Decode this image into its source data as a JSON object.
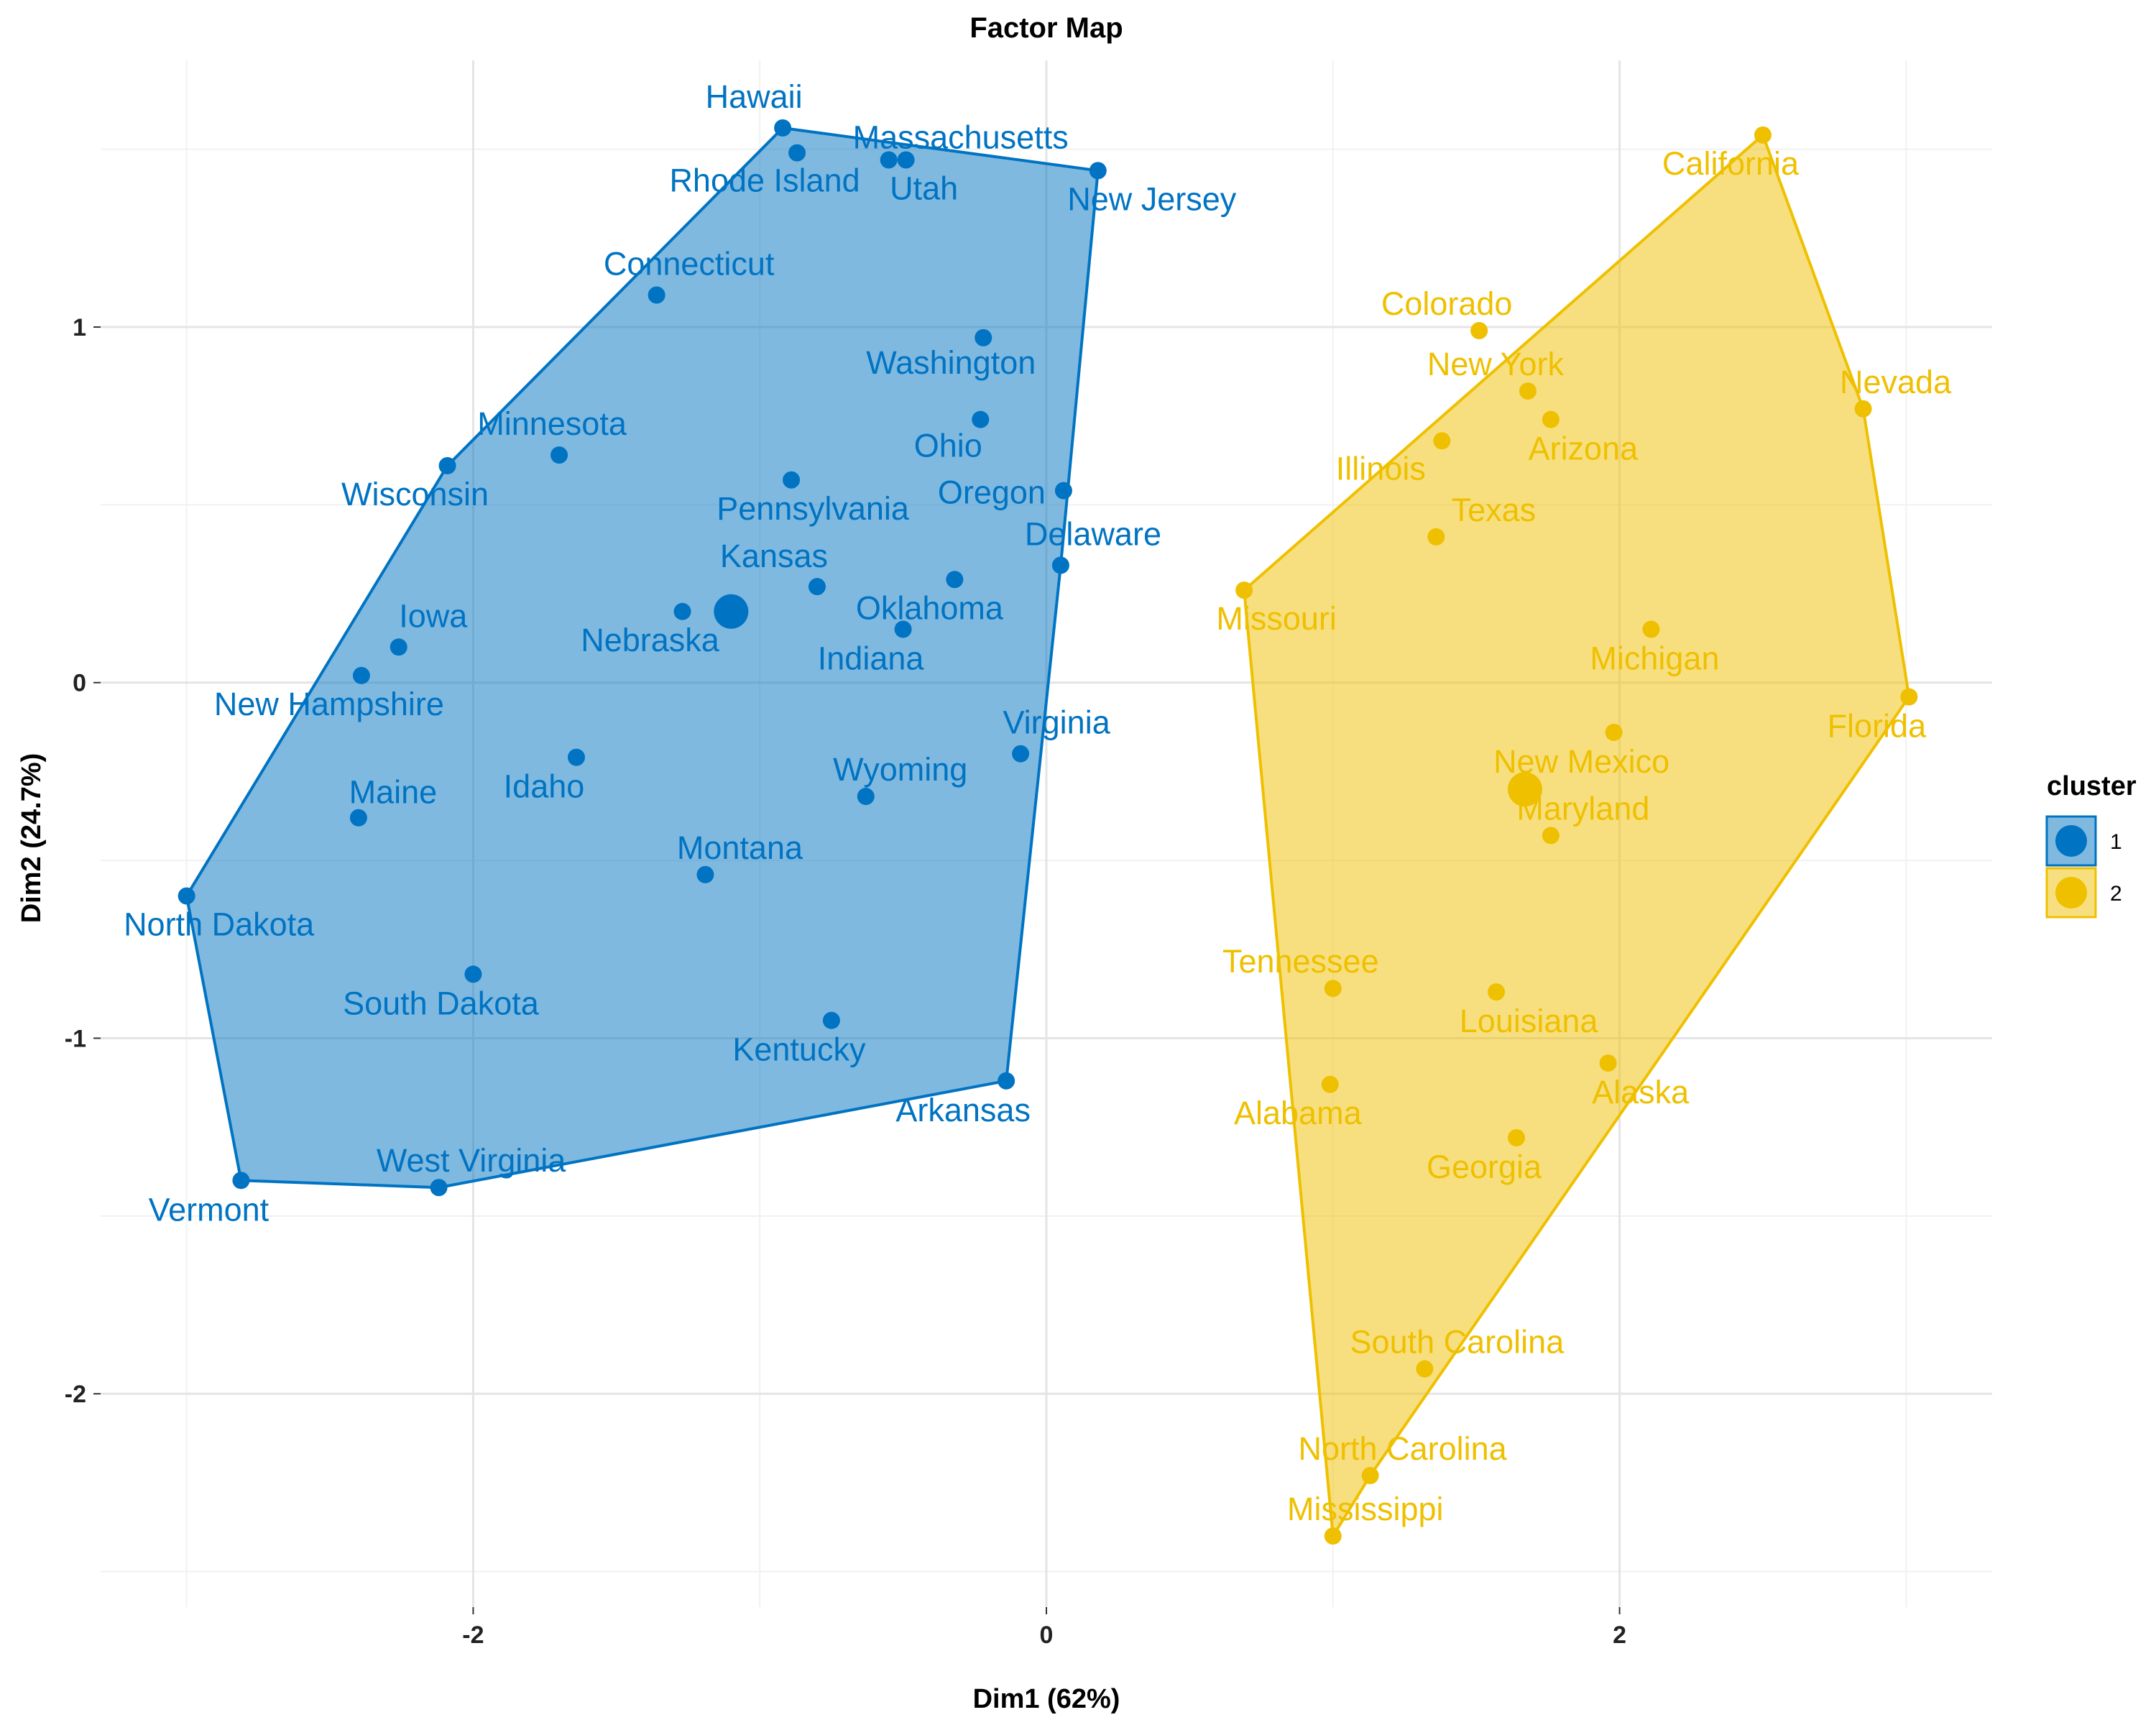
{
  "chart_data": {
    "type": "scatter",
    "title": "Factor Map",
    "xlabel": "Dim1 (62%)",
    "ylabel": "Dim2 (24.7%)",
    "xlim": [
      -3.3,
      3.3
    ],
    "ylim": [
      -2.6,
      1.75
    ],
    "x_ticks": [
      -2,
      0,
      2
    ],
    "x_tick_labels": [
      "-2",
      "0",
      "2"
    ],
    "y_ticks": [
      -2,
      -1,
      0,
      1
    ],
    "y_tick_labels": [
      "-2",
      "-1",
      "0",
      "1"
    ],
    "grid": true,
    "legend": {
      "title": "cluster",
      "position": "right",
      "entries": [
        "1",
        "2"
      ]
    },
    "colors": {
      "1": "#0073C2",
      "2": "#EFC000"
    },
    "series": [
      {
        "name": "1",
        "color": "#0073C2",
        "centroid": [
          -1.1,
          0.2
        ],
        "hull": [
          "North Dakota",
          "Wisconsin",
          "Hawaii",
          "New Jersey",
          "Delaware",
          "Arkansas",
          "West Virginia",
          "Vermont"
        ],
        "points": [
          {
            "label": "Hawaii",
            "x": -0.92,
            "y": 1.56
          },
          {
            "label": "Rhode Island",
            "x": -0.87,
            "y": 1.49
          },
          {
            "label": "Massachusetts",
            "x": -0.55,
            "y": 1.47
          },
          {
            "label": "Utah",
            "x": -0.49,
            "y": 1.47
          },
          {
            "label": "New Jersey",
            "x": 0.18,
            "y": 1.44
          },
          {
            "label": "Connecticut",
            "x": -1.36,
            "y": 1.09
          },
          {
            "label": "Washington",
            "x": -0.22,
            "y": 0.97
          },
          {
            "label": "Ohio",
            "x": -0.23,
            "y": 0.74
          },
          {
            "label": "Minnesota",
            "x": -1.7,
            "y": 0.64
          },
          {
            "label": "Wisconsin",
            "x": -2.09,
            "y": 0.61
          },
          {
            "label": "Pennsylvania",
            "x": -0.89,
            "y": 0.57
          },
          {
            "label": "Oregon",
            "x": 0.06,
            "y": 0.54
          },
          {
            "label": "Delaware",
            "x": 0.05,
            "y": 0.33
          },
          {
            "label": "Kansas",
            "x": -0.8,
            "y": 0.27
          },
          {
            "label": "Oklahoma",
            "x": -0.32,
            "y": 0.29
          },
          {
            "label": "Nebraska",
            "x": -1.27,
            "y": 0.2
          },
          {
            "label": "Indiana",
            "x": -0.5,
            "y": 0.15
          },
          {
            "label": "Iowa",
            "x": -2.26,
            "y": 0.1
          },
          {
            "label": "New Hampshire",
            "x": -2.39,
            "y": 0.02
          },
          {
            "label": "Virginia",
            "x": -0.09,
            "y": -0.2
          },
          {
            "label": "Idaho",
            "x": -1.64,
            "y": -0.21
          },
          {
            "label": "Wyoming",
            "x": -0.63,
            "y": -0.32
          },
          {
            "label": "Maine",
            "x": -2.4,
            "y": -0.38
          },
          {
            "label": "Montana",
            "x": -1.19,
            "y": -0.54
          },
          {
            "label": "North Dakota",
            "x": -3.0,
            "y": -0.6
          },
          {
            "label": "South Dakota",
            "x": -2.0,
            "y": -0.82
          },
          {
            "label": "Kentucky",
            "x": -0.75,
            "y": -0.95
          },
          {
            "label": "Arkansas",
            "x": -0.14,
            "y": -1.12
          },
          {
            "label": "West Virginia",
            "x": -2.12,
            "y": -1.42
          },
          {
            "label": "Vermont",
            "x": -2.81,
            "y": -1.4
          }
        ]
      },
      {
        "name": "2",
        "color": "#EFC000",
        "centroid": [
          1.67,
          -0.3
        ],
        "hull": [
          "Missouri",
          "California",
          "Nevada",
          "Florida",
          "North Carolina",
          "Mississippi"
        ],
        "points": [
          {
            "label": "California",
            "x": 2.5,
            "y": 1.54
          },
          {
            "label": "Colorado",
            "x": 1.51,
            "y": 0.99
          },
          {
            "label": "New York",
            "x": 1.68,
            "y": 0.82
          },
          {
            "label": "Arizona",
            "x": 1.76,
            "y": 0.74
          },
          {
            "label": "Nevada",
            "x": 2.85,
            "y": 0.77
          },
          {
            "label": "Illinois",
            "x": 1.38,
            "y": 0.68
          },
          {
            "label": "Texas",
            "x": 1.36,
            "y": 0.41
          },
          {
            "label": "Missouri",
            "x": 0.69,
            "y": 0.26
          },
          {
            "label": "Michigan",
            "x": 2.11,
            "y": 0.15
          },
          {
            "label": "Florida",
            "x": 3.01,
            "y": -0.04
          },
          {
            "label": "New Mexico",
            "x": 1.98,
            "y": -0.14
          },
          {
            "label": "Maryland",
            "x": 1.76,
            "y": -0.43
          },
          {
            "label": "Tennessee",
            "x": 1.0,
            "y": -0.86
          },
          {
            "label": "Louisiana",
            "x": 1.57,
            "y": -0.87
          },
          {
            "label": "Alabama",
            "x": 0.99,
            "y": -1.13
          },
          {
            "label": "Alaska",
            "x": 1.96,
            "y": -1.07
          },
          {
            "label": "Georgia",
            "x": 1.64,
            "y": -1.28
          },
          {
            "label": "South Carolina",
            "x": 1.32,
            "y": -1.93
          },
          {
            "label": "North Carolina",
            "x": 1.13,
            "y": -2.23
          },
          {
            "label": "Mississippi",
            "x": 1.0,
            "y": -2.4
          }
        ]
      }
    ]
  }
}
